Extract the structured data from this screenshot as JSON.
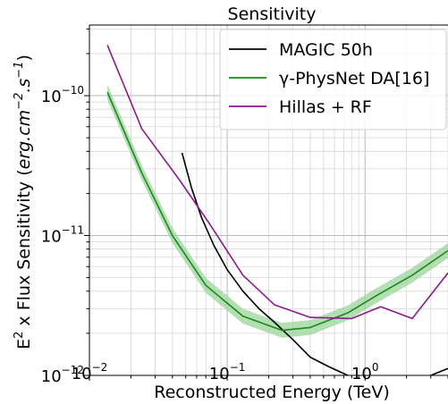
{
  "chart_data": {
    "type": "line",
    "title": "Sensitivity",
    "xlabel": "Reconstructed Energy (TeV)",
    "ylabel": {
      "prefix": "E",
      "prefix_sup": "2",
      "middle": " x Flux Sensitivity (",
      "unit_a": "erg.cm",
      "unit_a_sup": "−2",
      "unit_b": ".s",
      "unit_b_sup": "−1",
      "close": ")"
    },
    "x_scale": "log",
    "y_scale": "log",
    "xlim": [
      0.01,
      4.0
    ],
    "ylim": [
      1e-12,
      3.2e-10
    ],
    "grid": "major and minor",
    "legend_position": "top-right",
    "x_ticks": [
      {
        "value": 0.01,
        "base": "10",
        "exp": "−2"
      },
      {
        "value": 0.1,
        "base": "10",
        "exp": "−1"
      },
      {
        "value": 1,
        "base": "10",
        "exp": "0"
      }
    ],
    "y_ticks": [
      {
        "value": 1e-12,
        "base": "10",
        "exp": "−12"
      },
      {
        "value": 1e-11,
        "base": "10",
        "exp": "−11"
      },
      {
        "value": 1e-10,
        "base": "10",
        "exp": "−10"
      }
    ],
    "series": [
      {
        "name": "MAGIC 50h",
        "color": "#000000",
        "band": false,
        "points": [
          [
            0.047,
            3.9e-11
          ],
          [
            0.055,
            2.2e-11
          ],
          [
            0.065,
            1.35e-11
          ],
          [
            0.08,
            8.5e-12
          ],
          [
            0.1,
            5.7e-12
          ],
          [
            0.13,
            4e-12
          ],
          [
            0.17,
            3e-12
          ],
          [
            0.22,
            2.4e-12
          ],
          [
            0.3,
            1.8e-12
          ],
          [
            0.4,
            1.35e-12
          ],
          [
            0.55,
            1.15e-12
          ],
          [
            0.75,
            1e-12
          ],
          [
            1.0,
            9.3e-13
          ],
          [
            1.5,
            8.8e-13
          ],
          [
            2.2,
            9e-13
          ],
          [
            3.0,
            1e-12
          ],
          [
            4.0,
            1.12e-12
          ]
        ]
      },
      {
        "name": "γ-PhysNet DA[16]",
        "color": "#1a8a1a",
        "band": true,
        "band_color": "#9bd39b",
        "points": [
          [
            0.0135,
            1.06e-10
          ],
          [
            0.024,
            2.8e-11
          ],
          [
            0.04,
            1e-11
          ],
          [
            0.07,
            4.4e-12
          ],
          [
            0.13,
            2.65e-12
          ],
          [
            0.25,
            2.1e-12
          ],
          [
            0.4,
            2.2e-12
          ],
          [
            0.75,
            2.8e-12
          ],
          [
            1.2,
            3.7e-12
          ],
          [
            2.2,
            5.2e-12
          ],
          [
            4.0,
            7.8e-12
          ]
        ]
      },
      {
        "name": "Hillas + RF",
        "color": "#8b1a8b",
        "band": false,
        "points": [
          [
            0.0135,
            2.3e-10
          ],
          [
            0.024,
            5.8e-11
          ],
          [
            0.045,
            2.5e-11
          ],
          [
            0.075,
            1.2e-11
          ],
          [
            0.13,
            5.2e-12
          ],
          [
            0.22,
            3.2e-12
          ],
          [
            0.4,
            2.6e-12
          ],
          [
            0.8,
            2.55e-12
          ],
          [
            1.3,
            3.1e-12
          ],
          [
            2.2,
            2.55e-12
          ],
          [
            4.0,
            5.4e-12
          ]
        ]
      }
    ]
  }
}
